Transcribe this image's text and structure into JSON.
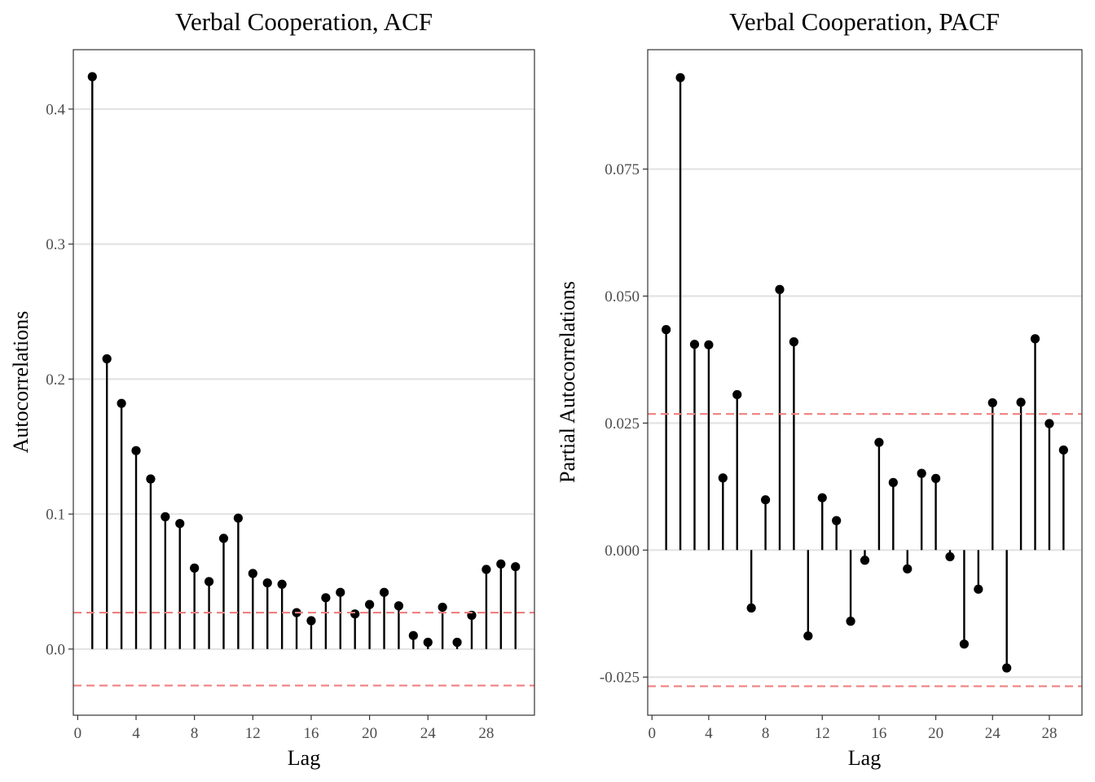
{
  "chart_data": [
    {
      "type": "lollipop",
      "title": "Verbal Cooperation, ACF",
      "xlabel": "Lag",
      "ylabel": "Autocorrelations",
      "xlim": [
        -0.3,
        31.3
      ],
      "ylim": [
        -0.049,
        0.444
      ],
      "xticks": [
        0,
        4,
        8,
        12,
        16,
        20,
        24,
        28
      ],
      "xtick_labels": [
        "0",
        "4",
        "8",
        "12",
        "16",
        "20",
        "24",
        "28"
      ],
      "yticks": [
        0.0,
        0.1,
        0.2,
        0.3,
        0.4
      ],
      "ytick_labels": [
        "0.0",
        "0.1",
        "0.2",
        "0.3",
        "0.4"
      ],
      "grid": true,
      "confidence_bounds": [
        0.027,
        -0.027
      ],
      "confidence_color": "#f08080",
      "lags": [
        1,
        2,
        3,
        4,
        5,
        6,
        7,
        8,
        9,
        10,
        11,
        12,
        13,
        14,
        15,
        16,
        17,
        18,
        19,
        20,
        21,
        22,
        23,
        24,
        25,
        26,
        27,
        28,
        29,
        30
      ],
      "values": [
        0.424,
        0.215,
        0.182,
        0.147,
        0.126,
        0.098,
        0.093,
        0.06,
        0.05,
        0.082,
        0.097,
        0.056,
        0.049,
        0.048,
        0.027,
        0.021,
        0.038,
        0.042,
        0.026,
        0.033,
        0.042,
        0.032,
        0.01,
        0.005,
        0.031,
        0.005,
        0.025,
        0.059,
        0.063,
        0.061
      ]
    },
    {
      "type": "lollipop",
      "title": "Verbal Cooperation, PACF",
      "xlabel": "Lag",
      "ylabel": "Partial Autocorrelations",
      "xlim": [
        -0.3,
        30.3
      ],
      "ylim": [
        -0.0325,
        0.0985
      ],
      "xticks": [
        0,
        4,
        8,
        12,
        16,
        20,
        24,
        28
      ],
      "xtick_labels": [
        "0",
        "4",
        "8",
        "12",
        "16",
        "20",
        "24",
        "28"
      ],
      "yticks": [
        -0.025,
        0.0,
        0.025,
        0.05,
        0.075
      ],
      "ytick_labels": [
        "-0.025",
        "0.000",
        "0.025",
        "0.050",
        "0.075"
      ],
      "grid": true,
      "confidence_bounds": [
        0.0268,
        -0.0268
      ],
      "confidence_color": "#f08080",
      "lags": [
        1,
        2,
        3,
        4,
        5,
        6,
        7,
        8,
        9,
        10,
        11,
        12,
        13,
        14,
        15,
        16,
        17,
        18,
        19,
        20,
        21,
        22,
        23,
        24,
        25,
        26,
        27,
        28,
        29
      ],
      "values": [
        0.0434,
        0.093,
        0.0405,
        0.0404,
        0.0142,
        0.0306,
        -0.0114,
        0.0099,
        0.0513,
        0.041,
        -0.0169,
        0.0103,
        0.0058,
        -0.014,
        -0.002,
        0.0212,
        0.0133,
        -0.0037,
        0.0151,
        0.0141,
        -0.0013,
        -0.0185,
        -0.0077,
        0.029,
        -0.0232,
        0.0291,
        0.0416,
        0.0249,
        0.0197
      ]
    }
  ]
}
